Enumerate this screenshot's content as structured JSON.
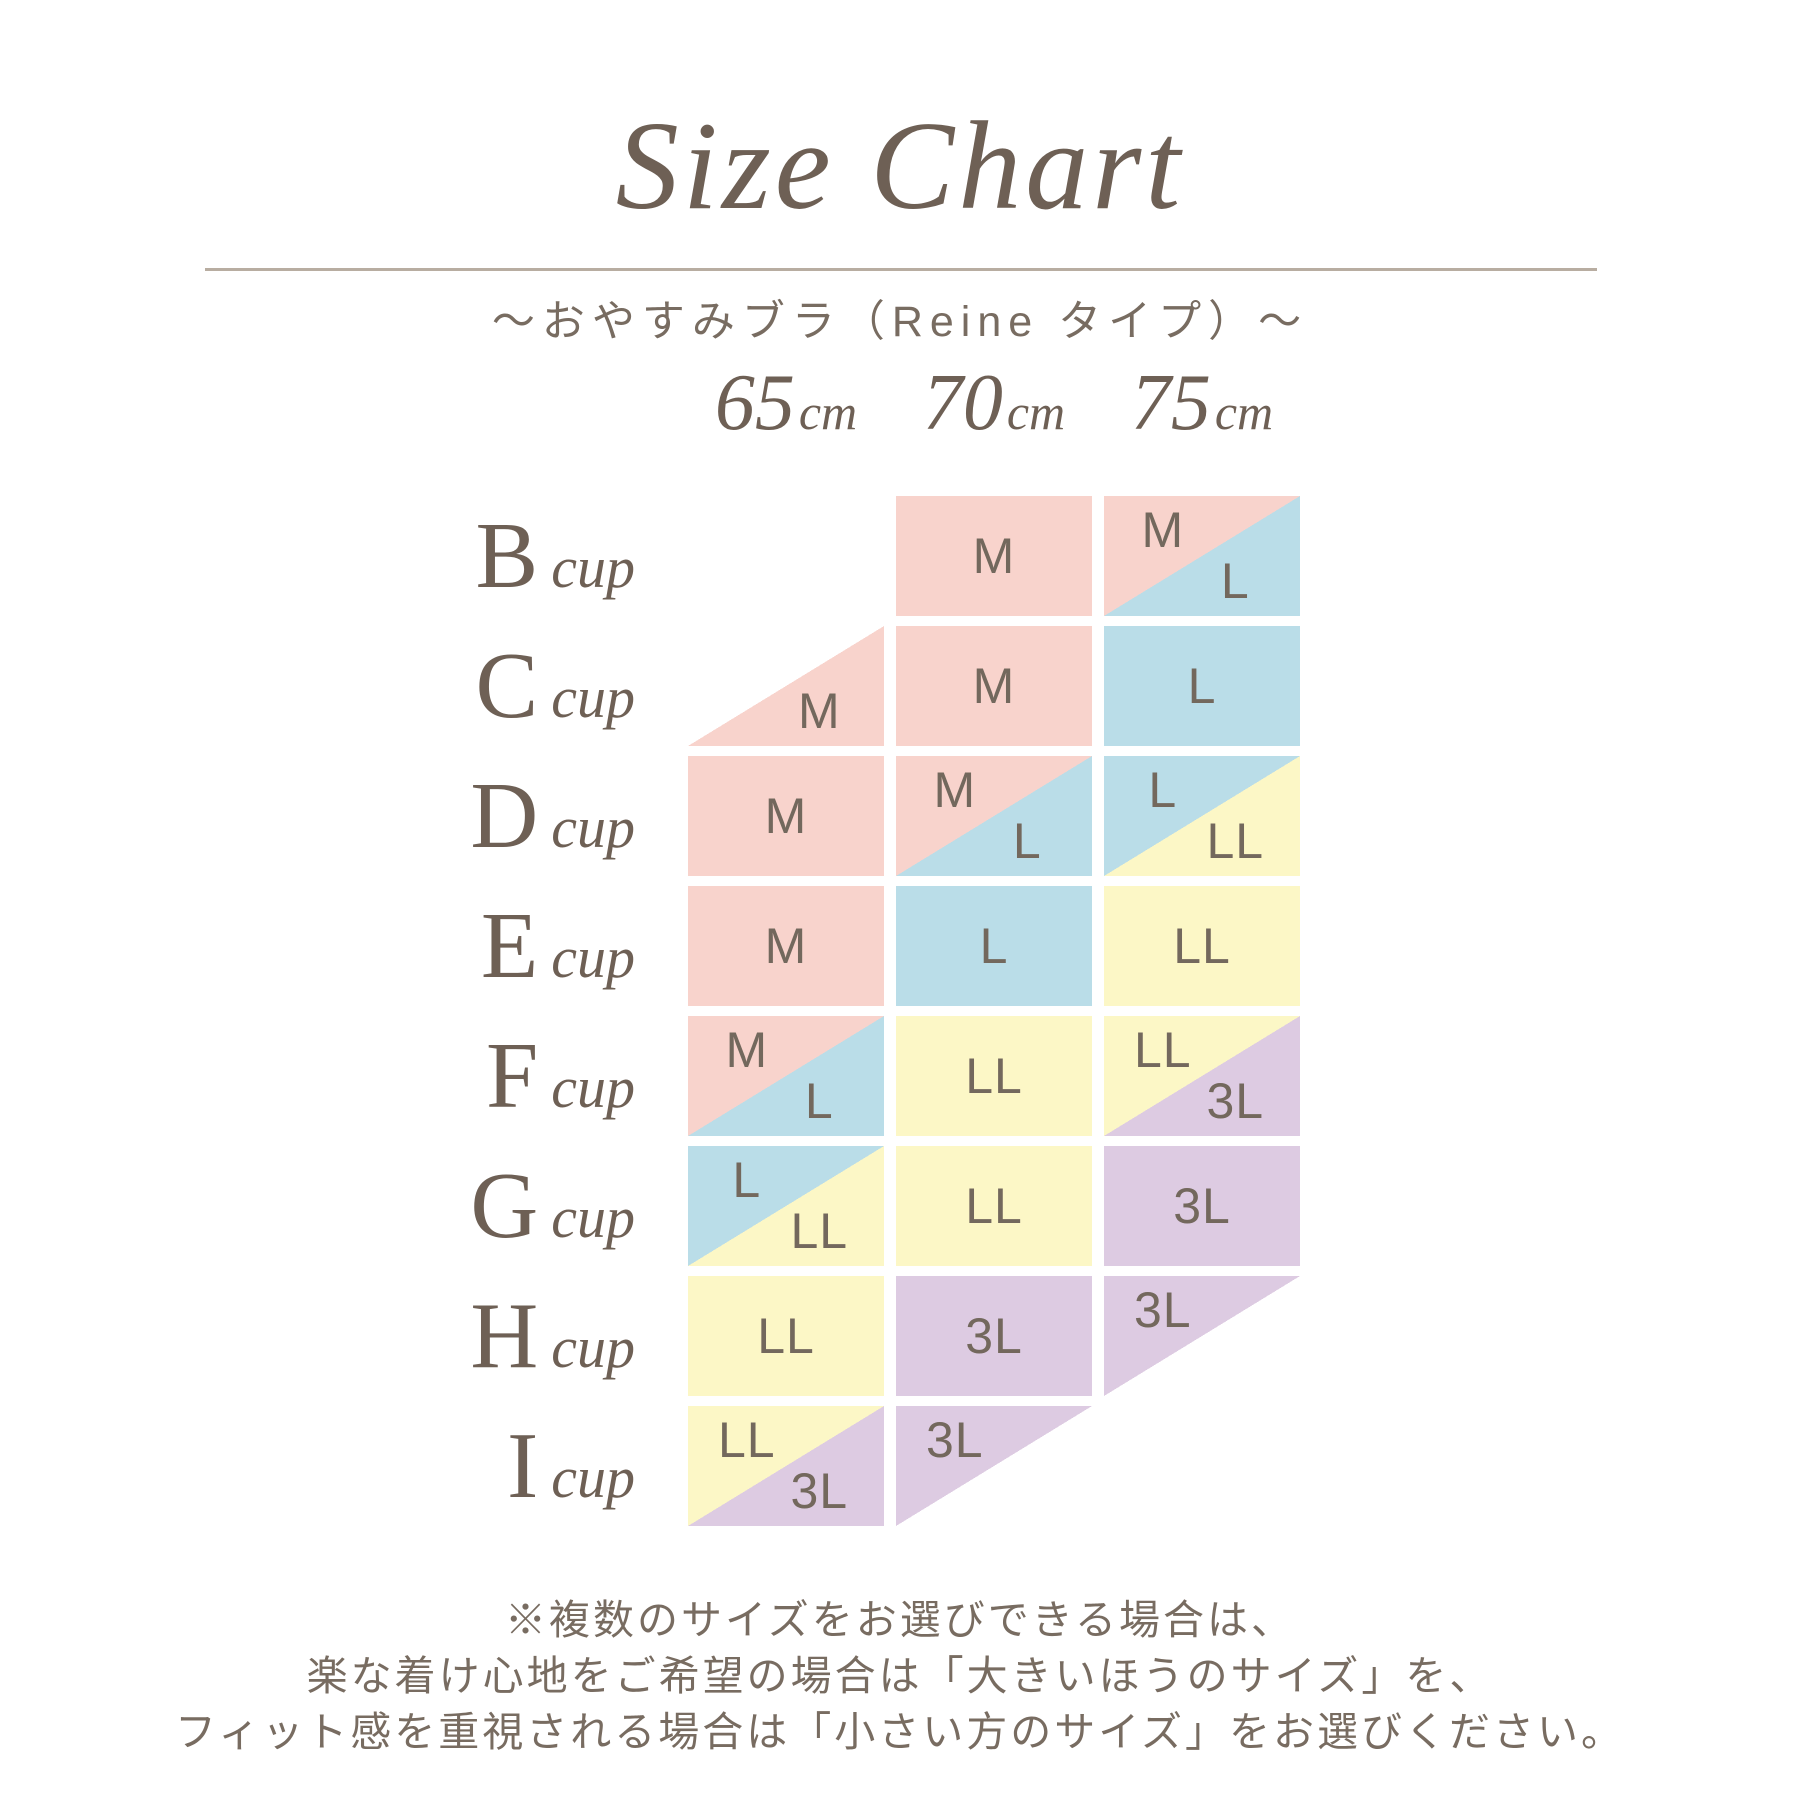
{
  "chart_data": {
    "type": "table",
    "title": "Size Chart",
    "subtitle": "〜おやすみブラ（Reine タイプ）〜",
    "column_headers": [
      {
        "number": "65",
        "unit": "cm"
      },
      {
        "number": "70",
        "unit": "cm"
      },
      {
        "number": "75",
        "unit": "cm"
      }
    ],
    "row_headers": [
      {
        "letter": "B",
        "suffix": "cup"
      },
      {
        "letter": "C",
        "suffix": "cup"
      },
      {
        "letter": "D",
        "suffix": "cup"
      },
      {
        "letter": "E",
        "suffix": "cup"
      },
      {
        "letter": "F",
        "suffix": "cup"
      },
      {
        "letter": "G",
        "suffix": "cup"
      },
      {
        "letter": "H",
        "suffix": "cup"
      },
      {
        "letter": "I",
        "suffix": "cup"
      }
    ],
    "size_color_legend": {
      "M": "#f8d3cc",
      "L": "#badde8",
      "LL": "#fcf7c6",
      "3L": "#ddcbe2"
    },
    "cells": [
      [
        null,
        {
          "solid": "M"
        },
        {
          "tl": "M",
          "br": "L"
        }
      ],
      [
        {
          "tri_br": "M"
        },
        {
          "solid": "M"
        },
        {
          "solid": "L"
        }
      ],
      [
        {
          "solid": "M"
        },
        {
          "tl": "M",
          "br": "L"
        },
        {
          "tl": "L",
          "br": "LL"
        }
      ],
      [
        {
          "solid": "M"
        },
        {
          "solid": "L"
        },
        {
          "solid": "LL"
        }
      ],
      [
        {
          "tl": "M",
          "br": "L"
        },
        {
          "solid": "LL"
        },
        {
          "tl": "LL",
          "br": "3L"
        }
      ],
      [
        {
          "tl": "L",
          "br": "LL"
        },
        {
          "solid": "LL"
        },
        {
          "solid": "3L"
        }
      ],
      [
        {
          "solid": "LL"
        },
        {
          "solid": "3L"
        },
        {
          "tri_tl": "3L"
        }
      ],
      [
        {
          "tl": "LL",
          "br": "3L"
        },
        {
          "tri_tl": "3L"
        },
        null
      ]
    ],
    "notes": [
      "※複数のサイズをお選びできる場合は、",
      "楽な着け心地をご希望の場合は「大きいほうのサイズ」を、",
      "フィット感を重視される場合は「小さい方のサイズ」をお選びください。"
    ]
  }
}
